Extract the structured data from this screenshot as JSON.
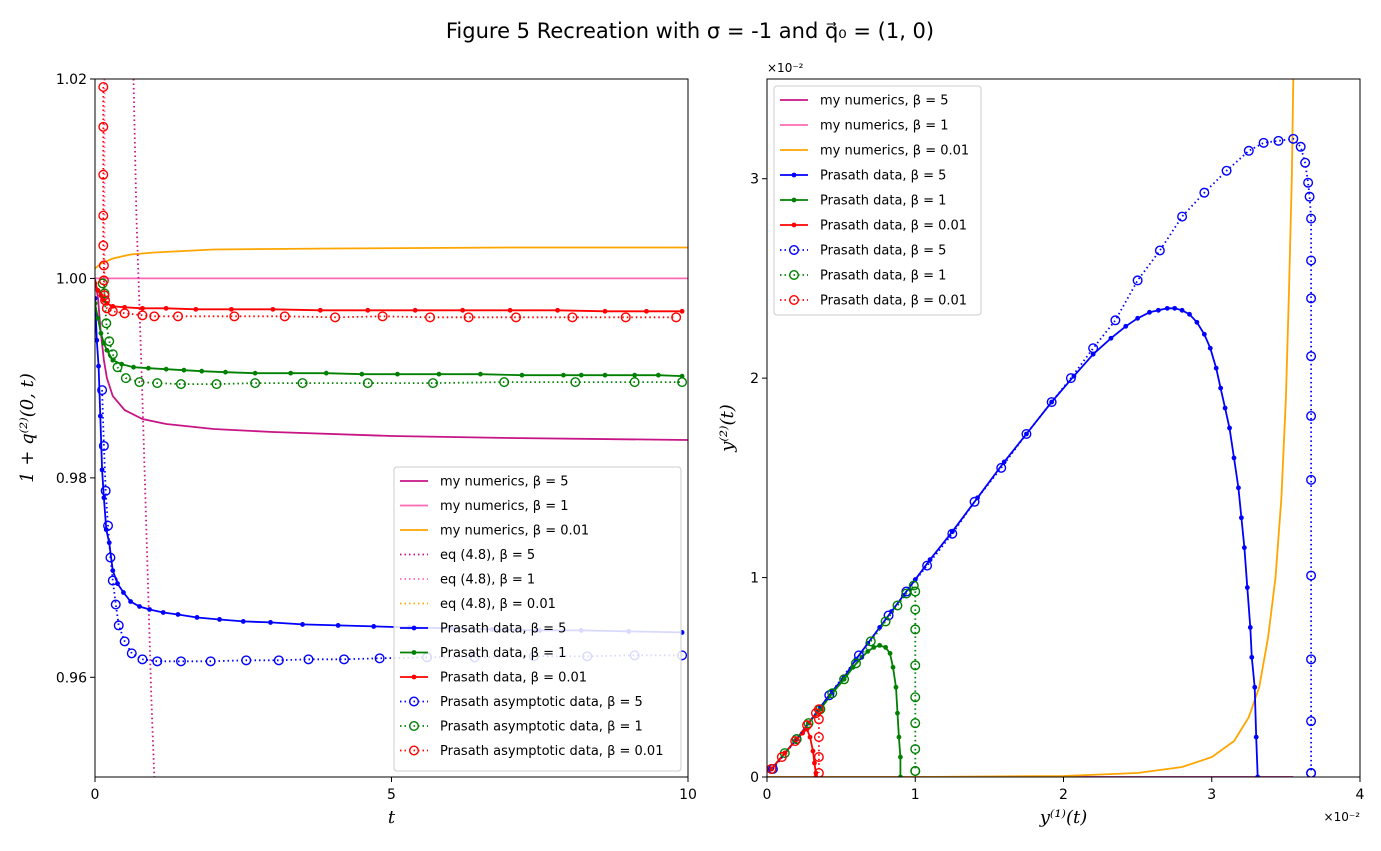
{
  "figure": {
    "title": "Figure 5 Recreation with σ =  -1 and q⃗₀ =  (1, 0)"
  },
  "colors": {
    "mag": "#c71585",
    "pink": "#ff69b4",
    "orange": "#ffa500",
    "blue": "#0000ff",
    "green": "#008000",
    "red": "#ff0000"
  },
  "chart_data": [
    {
      "type": "line",
      "xlabel": "t",
      "ylabel": "1 + q⁽²⁾(0, t)",
      "xlim": [
        0,
        10
      ],
      "ylim": [
        0.95,
        1.02
      ],
      "xticks": [
        0,
        5,
        10
      ],
      "xtick_labels": [
        "0",
        "5",
        "10"
      ],
      "yticks": [
        0.96,
        0.98,
        1.0,
        1.02
      ],
      "ytick_labels": [
        "0.96",
        "0.98",
        "1.00",
        "1.02"
      ],
      "grid": false,
      "legend_position": "lower-right",
      "series": [
        {
          "name": "my numerics, β = 5",
          "color": "mag",
          "style": "solid",
          "marker": "none",
          "x": [
            0,
            0.05,
            0.1,
            0.15,
            0.2,
            0.3,
            0.5,
            0.8,
            1.2,
            2,
            3,
            5,
            7,
            10
          ],
          "y": [
            1.0,
            0.998,
            0.9945,
            0.9918,
            0.99,
            0.9882,
            0.9868,
            0.9859,
            0.9854,
            0.9849,
            0.9846,
            0.9842,
            0.984,
            0.9838
          ]
        },
        {
          "name": "my numerics, β = 1",
          "color": "pink",
          "style": "solid",
          "marker": "none",
          "x": [
            0,
            10
          ],
          "y": [
            1.0,
            1.0
          ]
        },
        {
          "name": "my numerics, β = 0.01",
          "color": "orange",
          "style": "solid",
          "marker": "none",
          "x": [
            0,
            0.1,
            0.3,
            0.6,
            1,
            2,
            4,
            7,
            10
          ],
          "y": [
            1.001,
            1.0015,
            1.002,
            1.0024,
            1.0026,
            1.0029,
            1.003,
            1.0031,
            1.0031
          ]
        },
        {
          "name": "eq (4.8), β = 5",
          "color": "mag",
          "style": "dotted",
          "marker": "none",
          "x": [
            0.65,
            0.7,
            0.75,
            0.8,
            0.85,
            0.9,
            0.95,
            1.0
          ],
          "y": [
            1.02,
            1.006,
            0.997,
            0.988,
            0.978,
            0.968,
            0.958,
            0.95
          ]
        },
        {
          "name": "eq (4.8), β = 1",
          "color": "pink",
          "style": "dotted",
          "marker": "none",
          "x": [
            0.16,
            0.16
          ],
          "y": [
            1.02,
            0.998
          ]
        },
        {
          "name": "eq (4.8), β = 0.01",
          "color": "orange",
          "style": "dotted",
          "marker": "none",
          "x": [],
          "y": []
        },
        {
          "name": "Prasath data, β = 5",
          "color": "blue",
          "style": "solid",
          "marker": "dot",
          "x": [
            0.0,
            0.03,
            0.06,
            0.09,
            0.12,
            0.15,
            0.19,
            0.24,
            0.3,
            0.38,
            0.48,
            0.6,
            0.75,
            0.92,
            1.15,
            1.4,
            1.72,
            2.1,
            2.5,
            2.96,
            3.5,
            4.1,
            4.7,
            5.3,
            6,
            6.7,
            7.5,
            8.2,
            9,
            9.9
          ],
          "y": [
            0.998,
            0.9938,
            0.9912,
            0.9862,
            0.9808,
            0.978,
            0.9748,
            0.9735,
            0.9707,
            0.9694,
            0.9685,
            0.9676,
            0.9671,
            0.9668,
            0.9665,
            0.9663,
            0.966,
            0.9658,
            0.9656,
            0.9655,
            0.9653,
            0.9652,
            0.9651,
            0.965,
            0.9649,
            0.9648,
            0.9647,
            0.9647,
            0.9646,
            0.9645
          ]
        },
        {
          "name": "Prasath data, β = 1",
          "color": "green",
          "style": "solid",
          "marker": "dot",
          "x": [
            0.0,
            0.05,
            0.1,
            0.15,
            0.2,
            0.3,
            0.45,
            0.65,
            0.9,
            1.2,
            1.5,
            1.8,
            2.2,
            2.7,
            3.3,
            3.9,
            4.5,
            5.1,
            5.8,
            6.5,
            7.2,
            7.9,
            8.2,
            8.6,
            9.1,
            9.5,
            9.9
          ],
          "y": [
            0.9975,
            0.996,
            0.9945,
            0.9935,
            0.9928,
            0.9918,
            0.9914,
            0.9911,
            0.991,
            0.9909,
            0.9908,
            0.9907,
            0.9906,
            0.9905,
            0.9905,
            0.9905,
            0.9904,
            0.9904,
            0.9904,
            0.9904,
            0.9903,
            0.9903,
            0.9903,
            0.9903,
            0.9903,
            0.9903,
            0.9902
          ]
        },
        {
          "name": "Prasath data, β = 0.01",
          "color": "red",
          "style": "solid",
          "marker": "dot",
          "x": [
            0.0,
            0.05,
            0.1,
            0.15,
            0.2,
            0.3,
            0.5,
            0.8,
            1.2,
            1.7,
            2.3,
            3.0,
            3.8,
            4.6,
            5.4,
            6.2,
            7.0,
            7.8,
            8.6,
            9.3,
            9.9
          ],
          "y": [
            0.9995,
            0.9988,
            0.9983,
            0.9978,
            0.9975,
            0.9972,
            0.9971,
            0.997,
            0.997,
            0.9969,
            0.9969,
            0.9969,
            0.9968,
            0.9968,
            0.9968,
            0.9968,
            0.9968,
            0.9968,
            0.9967,
            0.9967,
            0.9967
          ]
        },
        {
          "name": "Prasath asymptotic data, β = 5",
          "color": "blue",
          "style": "dotted",
          "marker": "circle",
          "x": [
            0.12,
            0.15,
            0.18,
            0.22,
            0.26,
            0.3,
            0.35,
            0.4,
            0.5,
            0.62,
            0.8,
            1.05,
            1.45,
            1.95,
            2.55,
            3.1,
            3.6,
            4.2,
            4.8,
            5.6,
            6.4,
            7.4,
            8.3,
            9.1,
            9.9
          ],
          "y": [
            0.9888,
            0.9832,
            0.9787,
            0.9752,
            0.972,
            0.9697,
            0.9673,
            0.9652,
            0.9636,
            0.9624,
            0.9618,
            0.9616,
            0.9616,
            0.9616,
            0.9617,
            0.9617,
            0.9618,
            0.9618,
            0.9619,
            0.962,
            0.962,
            0.9621,
            0.9621,
            0.9622,
            0.9622
          ]
        },
        {
          "name": "Prasath asymptotic data, β = 1",
          "color": "green",
          "style": "dotted",
          "marker": "circle",
          "x": [
            0.13,
            0.16,
            0.19,
            0.24,
            0.3,
            0.38,
            0.52,
            0.75,
            1.05,
            1.45,
            2.05,
            2.7,
            3.5,
            4.6,
            5.7,
            6.9,
            8.1,
            9.1,
            9.9
          ],
          "y": [
            0.9995,
            0.9985,
            0.9955,
            0.9937,
            0.9924,
            0.9911,
            0.99,
            0.9896,
            0.9895,
            0.9894,
            0.9894,
            0.9895,
            0.9895,
            0.9895,
            0.9895,
            0.9896,
            0.9896,
            0.9896,
            0.9896
          ]
        },
        {
          "name": "Prasath asymptotic data, β = 0.01",
          "color": "red",
          "style": "dotted",
          "marker": "circle",
          "x": [
            0.14,
            0.14,
            0.14,
            0.14,
            0.14,
            0.15,
            0.15,
            0.16,
            0.17,
            0.2,
            0.3,
            0.5,
            0.8,
            1.0,
            1.4,
            2.35,
            3.2,
            4.05,
            4.85,
            5.65,
            6.3,
            7.1,
            8.05,
            8.95,
            9.8
          ],
          "y": [
            1.0192,
            1.0152,
            1.0104,
            1.0063,
            1.0033,
            1.0013,
            0.9998,
            0.9983,
            0.9978,
            0.997,
            0.9967,
            0.9965,
            0.9963,
            0.9962,
            0.9962,
            0.9962,
            0.9962,
            0.9961,
            0.9962,
            0.9961,
            0.9961,
            0.9961,
            0.9961,
            0.9961,
            0.9961
          ]
        }
      ]
    },
    {
      "type": "line",
      "xlabel": "y⁽¹⁾(t)",
      "ylabel": "y⁽²⁾(t)",
      "xlim": [
        0,
        4
      ],
      "ylim": [
        0,
        3.5
      ],
      "x_multiplier": "×10⁻²",
      "y_multiplier": "×10⁻²",
      "xticks": [
        0,
        1,
        2,
        3,
        4
      ],
      "xtick_labels": [
        "0",
        "1",
        "2",
        "3",
        "4"
      ],
      "yticks": [
        0,
        1,
        2,
        3
      ],
      "ytick_labels": [
        "0",
        "1",
        "2",
        "3"
      ],
      "grid": false,
      "legend_position": "upper-left",
      "series": [
        {
          "name": "my numerics, β = 5",
          "color": "mag",
          "style": "solid",
          "marker": "none",
          "x": [
            0,
            3.55
          ],
          "y": [
            0,
            0
          ]
        },
        {
          "name": "my numerics, β = 1",
          "color": "pink",
          "style": "solid",
          "marker": "none",
          "x": [
            0,
            1.0
          ],
          "y": [
            0,
            0
          ]
        },
        {
          "name": "my numerics, β = 0.01",
          "color": "orange",
          "style": "solid",
          "marker": "none",
          "x": [
            0,
            1.0,
            2.0,
            2.5,
            2.8,
            3.0,
            3.15,
            3.25,
            3.32,
            3.38,
            3.43,
            3.47,
            3.5,
            3.52,
            3.54,
            3.55
          ],
          "y": [
            0,
            0,
            0.005,
            0.02,
            0.05,
            0.1,
            0.18,
            0.3,
            0.45,
            0.7,
            1.0,
            1.4,
            1.9,
            2.4,
            3.0,
            3.5
          ]
        },
        {
          "name": "Prasath data, β = 5",
          "color": "blue",
          "style": "solid",
          "marker": "dot",
          "x": [
            0.03,
            0.12,
            0.2,
            0.28,
            0.36,
            0.44,
            0.52,
            0.6,
            0.68,
            0.76,
            0.84,
            0.92,
            1.0,
            1.1,
            1.25,
            1.42,
            1.6,
            1.75,
            1.92,
            2.07,
            2.2,
            2.32,
            2.42,
            2.5,
            2.58,
            2.64,
            2.7,
            2.75,
            2.8,
            2.85,
            2.9,
            2.95,
            2.99,
            3.03,
            3.06,
            3.09,
            3.12,
            3.15,
            3.18,
            3.2,
            3.22,
            3.24,
            3.26,
            3.27,
            3.29,
            3.3,
            3.31
          ],
          "y": [
            0.04,
            0.12,
            0.19,
            0.27,
            0.35,
            0.43,
            0.5,
            0.59,
            0.67,
            0.75,
            0.83,
            0.91,
            0.99,
            1.09,
            1.23,
            1.4,
            1.58,
            1.72,
            1.88,
            2.01,
            2.12,
            2.2,
            2.26,
            2.3,
            2.33,
            2.34,
            2.35,
            2.35,
            2.34,
            2.32,
            2.28,
            2.22,
            2.15,
            2.05,
            1.95,
            1.85,
            1.75,
            1.6,
            1.45,
            1.3,
            1.15,
            0.95,
            0.75,
            0.6,
            0.45,
            0.2,
            0.0
          ]
        },
        {
          "name": "Prasath data, β = 1",
          "color": "green",
          "style": "solid",
          "marker": "dot",
          "x": [
            0.03,
            0.12,
            0.2,
            0.28,
            0.36,
            0.44,
            0.52,
            0.58,
            0.64,
            0.68,
            0.72,
            0.76,
            0.8,
            0.83,
            0.85,
            0.87,
            0.88,
            0.89,
            0.9,
            0.9
          ],
          "y": [
            0.04,
            0.12,
            0.19,
            0.27,
            0.34,
            0.42,
            0.49,
            0.55,
            0.6,
            0.63,
            0.65,
            0.66,
            0.65,
            0.62,
            0.55,
            0.45,
            0.32,
            0.2,
            0.1,
            0.0
          ]
        },
        {
          "name": "Prasath data, β = 0.01",
          "color": "red",
          "style": "solid",
          "marker": "dot",
          "x": [
            0.03,
            0.12,
            0.19,
            0.24,
            0.27,
            0.29,
            0.31,
            0.32,
            0.33,
            0.33
          ],
          "y": [
            0.04,
            0.12,
            0.18,
            0.22,
            0.24,
            0.2,
            0.13,
            0.07,
            0.02,
            0.0
          ]
        },
        {
          "name": "Prasath data, β = 5",
          "color": "blue",
          "style": "dotted",
          "marker": "circle",
          "x": [
            0.04,
            0.2,
            0.42,
            0.62,
            0.82,
            0.94,
            1.08,
            1.25,
            1.4,
            1.58,
            1.75,
            1.92,
            2.05,
            2.2,
            2.35,
            2.5,
            2.65,
            2.8,
            2.95,
            3.1,
            3.25,
            3.35,
            3.45,
            3.55,
            3.6,
            3.63,
            3.65,
            3.66,
            3.67,
            3.67,
            3.67,
            3.67,
            3.67,
            3.67,
            3.67,
            3.67,
            3.67,
            3.67,
            3.67
          ],
          "y": [
            0.04,
            0.19,
            0.41,
            0.61,
            0.81,
            0.93,
            1.06,
            1.22,
            1.38,
            1.55,
            1.72,
            1.88,
            2.0,
            2.15,
            2.29,
            2.49,
            2.64,
            2.81,
            2.93,
            3.04,
            3.14,
            3.18,
            3.19,
            3.2,
            3.16,
            3.08,
            2.98,
            2.91,
            2.8,
            2.59,
            2.4,
            2.11,
            1.81,
            1.49,
            1.01,
            0.59,
            0.28,
            0.02,
            0.02
          ]
        },
        {
          "name": "Prasath data, β = 1",
          "color": "green",
          "style": "dotted",
          "marker": "circle",
          "x": [
            0.03,
            0.12,
            0.2,
            0.28,
            0.36,
            0.44,
            0.52,
            0.6,
            0.7,
            0.8,
            0.88,
            0.94,
            0.99,
            1.0,
            1.0,
            1.0,
            1.0,
            1.0,
            1.0,
            1.0,
            1.0,
            1.0
          ],
          "y": [
            0.04,
            0.12,
            0.19,
            0.27,
            0.34,
            0.42,
            0.49,
            0.57,
            0.68,
            0.78,
            0.86,
            0.92,
            0.96,
            0.93,
            0.84,
            0.74,
            0.56,
            0.4,
            0.27,
            0.14,
            0.03,
            0.03
          ]
        },
        {
          "name": "Prasath data, β = 0.01",
          "color": "red",
          "style": "dotted",
          "marker": "circle",
          "x": [
            0.03,
            0.1,
            0.19,
            0.27,
            0.33,
            0.35,
            0.35,
            0.35,
            0.35,
            0.35
          ],
          "y": [
            0.04,
            0.1,
            0.18,
            0.26,
            0.32,
            0.34,
            0.29,
            0.2,
            0.1,
            0.02
          ]
        }
      ]
    }
  ]
}
